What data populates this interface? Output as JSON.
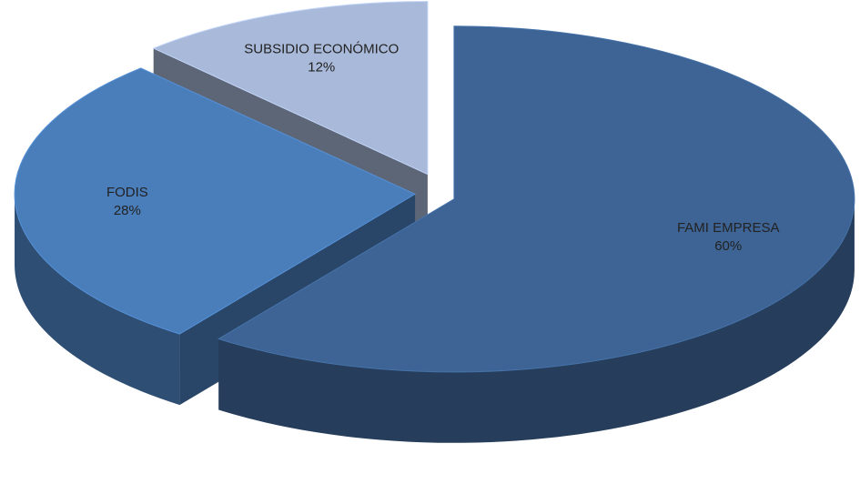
{
  "chart_data": {
    "type": "pie3d",
    "categories": [
      "FAMI EMPRESA",
      "FODIS",
      "SUBSIDIO ECONÓMICO"
    ],
    "values": [
      60,
      28,
      12
    ],
    "value_labels": [
      "60%",
      "28%",
      "12%"
    ],
    "colors": [
      "#3d6494",
      "#4a7ebb",
      "#a9b9d9"
    ]
  }
}
